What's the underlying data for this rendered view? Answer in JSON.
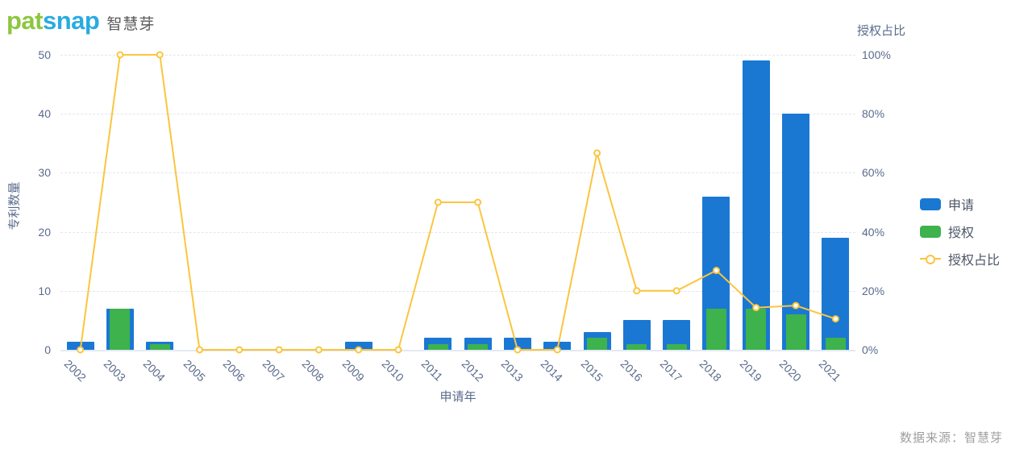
{
  "logo": {
    "part_green": "pat",
    "part_blue": "snap",
    "suffix": "智慧芽",
    "green": "#8dc63f",
    "blue": "#29abe2"
  },
  "source_note": "数据来源：智慧芽",
  "chart_data": {
    "type": "bar+line",
    "categories": [
      "2002",
      "2003",
      "2004",
      "2005",
      "2006",
      "2007",
      "2008",
      "2009",
      "2010",
      "2011",
      "2012",
      "2013",
      "2014",
      "2015",
      "2016",
      "2017",
      "2018",
      "2019",
      "2020",
      "2021"
    ],
    "series": [
      {
        "name": "申请",
        "type": "bar",
        "axis": "left",
        "color": "#1a78d3",
        "values": [
          1,
          7,
          1,
          0,
          0,
          0,
          0,
          1,
          0,
          2,
          2,
          2,
          1,
          3,
          5,
          5,
          26,
          49,
          40,
          19
        ]
      },
      {
        "name": "授权",
        "type": "bar",
        "axis": "left",
        "color": "#3db24d",
        "values": [
          0,
          7,
          1,
          0,
          0,
          0,
          0,
          0,
          0,
          1,
          1,
          0,
          0,
          2,
          1,
          1,
          7,
          7,
          6,
          2
        ]
      },
      {
        "name": "授权占比",
        "type": "line",
        "axis": "right",
        "color": "#fbc53f",
        "values": [
          0,
          100,
          100,
          0,
          0,
          0,
          0,
          0,
          0,
          50,
          50,
          0,
          0,
          66.7,
          20,
          20,
          26.9,
          14.3,
          15,
          10.5
        ]
      }
    ],
    "xlabel": "申请年",
    "left_axis": {
      "title": "专利数量",
      "ticks": [
        0,
        10,
        20,
        30,
        40,
        50
      ],
      "max": 50,
      "suffix": ""
    },
    "right_axis": {
      "title": "授权占比",
      "ticks": [
        0,
        20,
        40,
        60,
        80,
        100
      ],
      "max": 100,
      "suffix": "%"
    },
    "grid": "dashed",
    "legend_position": "right",
    "marker": "hollow-circle",
    "colors": {
      "grid": "#e2e6ee",
      "axis_text": "#5a6b8c",
      "background": "#ffffff"
    }
  }
}
